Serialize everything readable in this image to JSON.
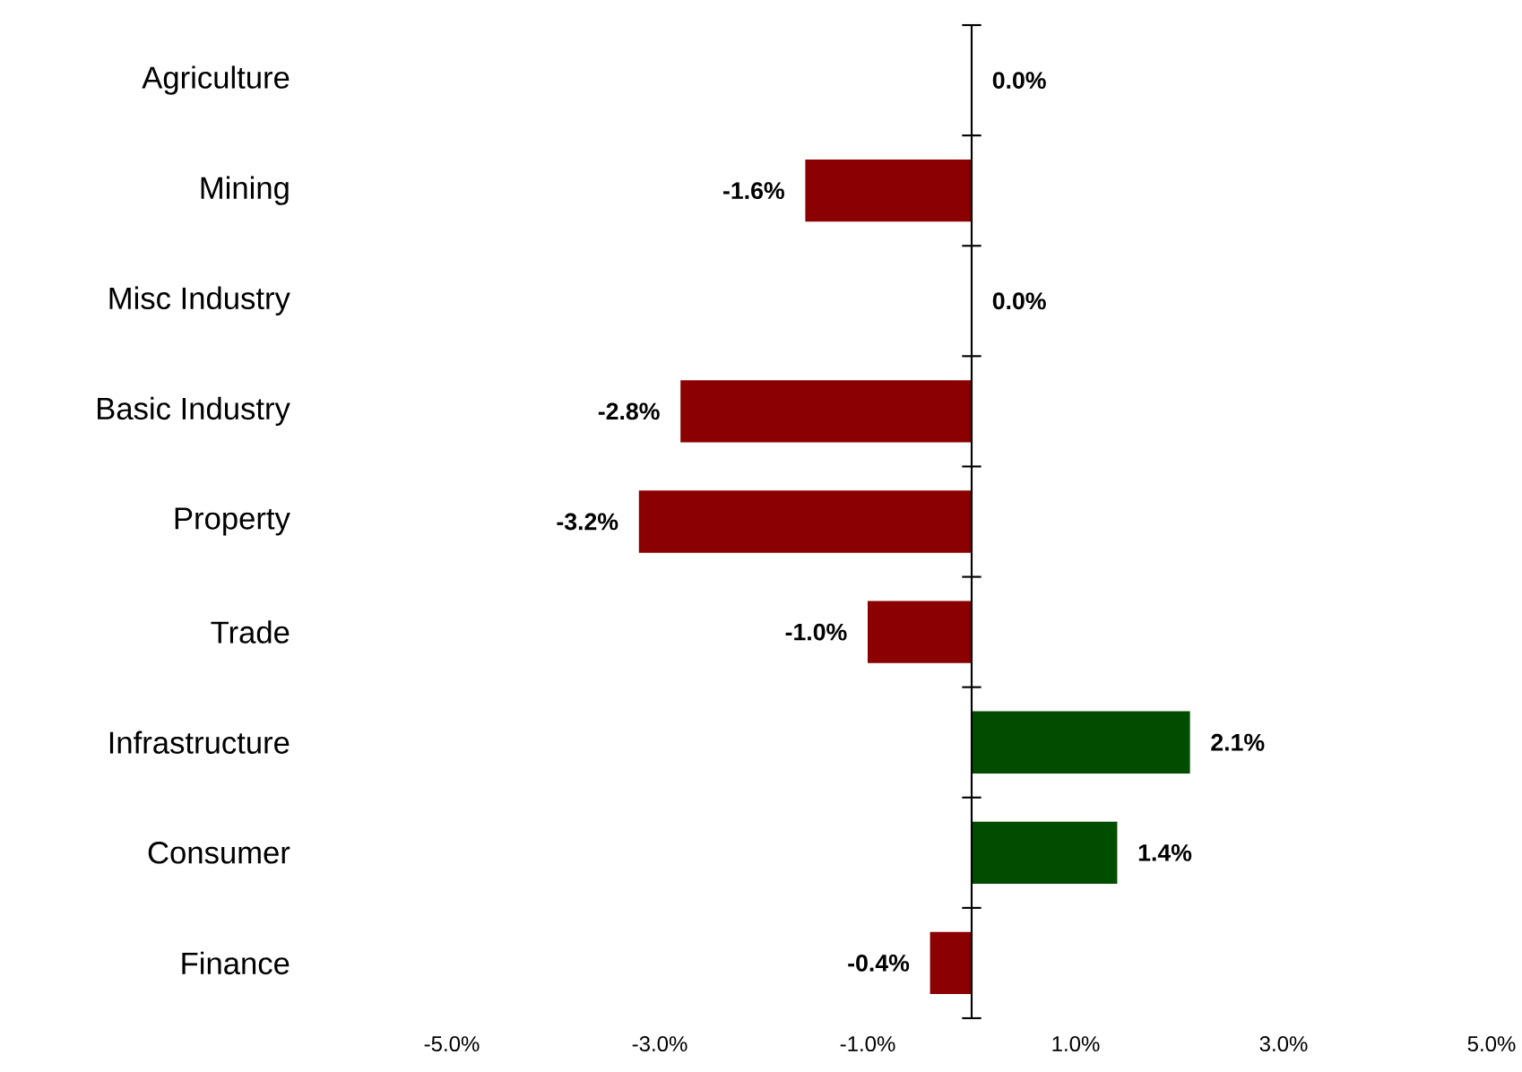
{
  "chart_data": {
    "type": "bar",
    "orientation": "horizontal",
    "categories": [
      "Agriculture",
      "Mining",
      "Misc Industry",
      "Basic Industry",
      "Property",
      "Trade",
      "Infrastructure",
      "Consumer",
      "Finance"
    ],
    "values": [
      0.0,
      -1.6,
      0.0,
      -2.8,
      -3.2,
      -1.0,
      2.1,
      1.4,
      -0.4
    ],
    "value_labels": [
      "0.0%",
      "-1.6%",
      "0.0%",
      "-2.8%",
      "-3.2%",
      "-1.0%",
      "2.1%",
      "1.4%",
      "-0.4%"
    ],
    "colors": [
      "#8b0000",
      "#8b0000",
      "#8b0000",
      "#8b0000",
      "#8b0000",
      "#8b0000",
      "#004d00",
      "#004d00",
      "#8b0000"
    ],
    "xlim": [
      -5,
      5
    ],
    "xticks": [
      {
        "value": -5,
        "label": "-5.0%"
      },
      {
        "value": -3,
        "label": "-3.0%"
      },
      {
        "value": -1,
        "label": "-1.0%"
      },
      {
        "value": 1,
        "label": "1.0%"
      },
      {
        "value": 3,
        "label": "3.0%"
      },
      {
        "value": 5,
        "label": "5.0%"
      }
    ],
    "grid": false
  }
}
